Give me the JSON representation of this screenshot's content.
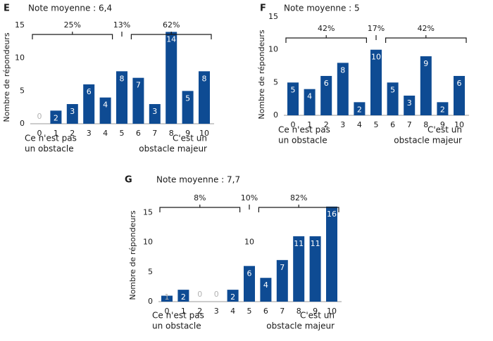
{
  "colors": {
    "bar": "#0e4b93",
    "bar_text": "#ffffff",
    "zero_label": "#b3b3b3",
    "text": "#1a1a1a",
    "axis": "#9a9a9a",
    "bracket": "#1a1a1a"
  },
  "chart_data": [
    {
      "type": "bar",
      "panel_letter": "E",
      "mean_label": "Note moyenne : 6,4",
      "ylabel": "Nombre de répondeurs",
      "categories": [
        "0",
        "1",
        "2",
        "3",
        "4",
        "5",
        "6",
        "7",
        "8",
        "9",
        "10"
      ],
      "values": [
        0,
        2,
        3,
        6,
        4,
        8,
        7,
        3,
        14,
        5,
        8
      ],
      "value_labels": [
        "0",
        "2",
        "3",
        "6",
        "4",
        "8",
        "7",
        "3",
        "14",
        "5",
        "8"
      ],
      "yticks": [
        "0",
        "5",
        "10",
        "15"
      ],
      "ylim": [
        0,
        15
      ],
      "left_label": [
        "Ce n'est pas",
        "un obstacle"
      ],
      "right_label": [
        "C'est un",
        "obstacle majeur"
      ],
      "groups": [
        {
          "range": [
            0,
            4
          ],
          "pct": "25%"
        },
        {
          "range": [
            5,
            5
          ],
          "pct": "13%"
        },
        {
          "range": [
            6,
            10
          ],
          "pct": "62%"
        }
      ],
      "annotations": []
    },
    {
      "type": "bar",
      "panel_letter": "F",
      "mean_label": "Note moyenne : 5",
      "ylabel": "Nombre de répondeurs",
      "categories": [
        "0",
        "1",
        "2",
        "3",
        "4",
        "5",
        "6",
        "7",
        "8",
        "9",
        "10"
      ],
      "values": [
        5,
        4,
        6,
        8,
        2,
        10,
        5,
        3,
        9,
        2,
        6
      ],
      "value_labels": [
        "5",
        "4",
        "6",
        "8",
        "2",
        "10",
        "5",
        "3",
        "9",
        "2",
        "6"
      ],
      "yticks": [
        "0",
        "5",
        "10",
        "15"
      ],
      "ylim": [
        0,
        15
      ],
      "left_label": [
        "Ce n'est pas",
        "un obstacle"
      ],
      "right_label": [
        "C'est un",
        "obstacle majeur"
      ],
      "groups": [
        {
          "range": [
            0,
            4
          ],
          "pct": "42%"
        },
        {
          "range": [
            5,
            5
          ],
          "pct": "17%"
        },
        {
          "range": [
            6,
            10
          ],
          "pct": "42%"
        }
      ],
      "annotations": []
    },
    {
      "type": "bar",
      "panel_letter": "G",
      "mean_label": "Note moyenne : 7,7",
      "ylabel": "Nombre de répondeurs",
      "categories": [
        "0",
        "1",
        "2",
        "3",
        "4",
        "5",
        "6",
        "7",
        "8",
        "9",
        "10"
      ],
      "values": [
        1,
        2,
        0,
        0,
        2,
        6,
        4,
        7,
        11,
        11,
        16
      ],
      "value_labels": [
        "1",
        "2",
        "0",
        "0",
        "2",
        "6",
        "4",
        "7",
        "11",
        "11",
        "16"
      ],
      "yticks": [
        "0",
        "5",
        "10",
        "15"
      ],
      "ylim": [
        0,
        16
      ],
      "left_label": [
        "Ce n'est pas",
        "un obstacle"
      ],
      "right_label": [
        "C'est un",
        "obstacle majeur"
      ],
      "groups": [
        {
          "range": [
            0,
            4
          ],
          "pct": "8%"
        },
        {
          "range": [
            5,
            5
          ],
          "pct": "10%"
        },
        {
          "range": [
            6,
            10
          ],
          "pct": "82%"
        }
      ],
      "annotations": [
        {
          "text": "10",
          "x": 5,
          "y": 10
        }
      ]
    }
  ]
}
